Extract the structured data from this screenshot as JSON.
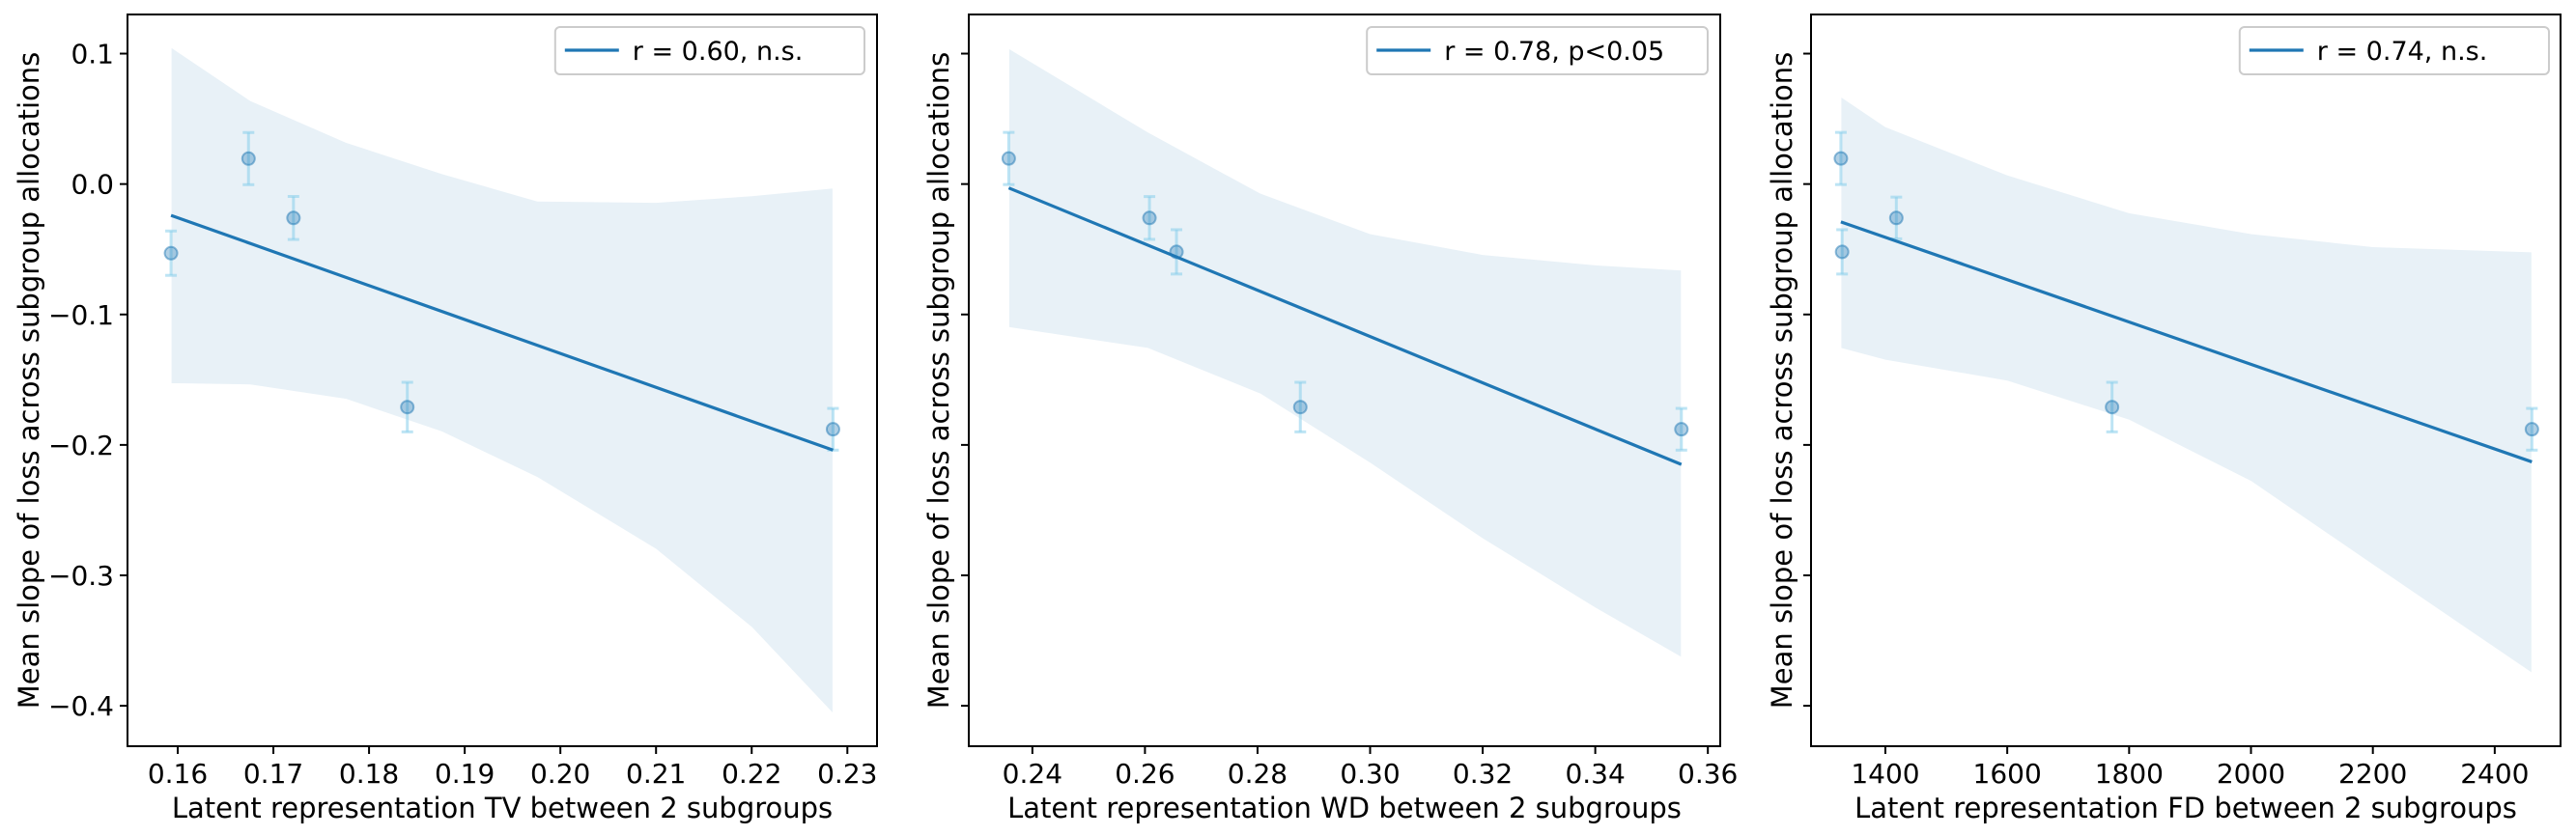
{
  "colors": {
    "fit_line": "#1f77b4",
    "confidence_band": "#1f77b4",
    "marker": "#1f77b4",
    "error_bar": "#87ceeb",
    "axes": "#000000",
    "legend_border": "#cccccc"
  },
  "chart_data": [
    {
      "type": "scatter",
      "xlabel": "Latent representation TV between 2 subgroups",
      "ylabel": "Mean slope of loss across subgroup allocations",
      "xlim": [
        0.15475,
        0.2331
      ],
      "ylim": [
        -0.431,
        0.13
      ],
      "xticks": [
        0.16,
        0.17,
        0.18,
        0.19,
        0.2,
        0.21,
        0.22,
        0.23
      ],
      "xtick_labels": [
        "0.16",
        "0.17",
        "0.18",
        "0.19",
        "0.20",
        "0.21",
        "0.22",
        "0.23"
      ],
      "yticks": [
        0.1,
        0.0,
        -0.1,
        -0.2,
        -0.3,
        -0.4
      ],
      "ytick_labels": [
        "0.1",
        "0.0",
        "−0.1",
        "−0.2",
        "−0.3",
        "−0.4"
      ],
      "show_ytick_labels": true,
      "grid": false,
      "legend": {
        "label": "r = 0.60, n.s.",
        "placement": "top-right"
      },
      "points": [
        {
          "x": 0.1593,
          "y": -0.053,
          "err": 0.017
        },
        {
          "x": 0.1674,
          "y": 0.0195,
          "err": 0.02
        },
        {
          "x": 0.1721,
          "y": -0.026,
          "err": 0.0165
        },
        {
          "x": 0.184,
          "y": -0.171,
          "err": 0.019
        },
        {
          "x": 0.2285,
          "y": -0.188,
          "err": 0.016
        }
      ],
      "fit_line": {
        "x": [
          0.1593,
          0.2285
        ],
        "y": [
          -0.024,
          -0.204
        ]
      },
      "confidence_band": {
        "x": [
          0.1593,
          0.1676,
          0.1776,
          0.1876,
          0.1976,
          0.21,
          0.22,
          0.2285
        ],
        "upper": [
          0.105,
          0.064,
          0.032,
          0.008,
          -0.013,
          -0.014,
          -0.009,
          -0.003
        ],
        "lower": [
          -0.153,
          -0.154,
          -0.165,
          -0.19,
          -0.225,
          -0.28,
          -0.34,
          -0.406
        ]
      }
    },
    {
      "type": "scatter",
      "xlabel": "Latent representation WD between 2 subgroups",
      "ylabel": "Mean slope of loss across subgroup allocations",
      "xlim": [
        0.2287,
        0.3622
      ],
      "ylim": [
        -0.431,
        0.13
      ],
      "xticks": [
        0.24,
        0.26,
        0.28,
        0.3,
        0.32,
        0.34,
        0.36
      ],
      "xtick_labels": [
        "0.24",
        "0.26",
        "0.28",
        "0.30",
        "0.32",
        "0.34",
        "0.36"
      ],
      "yticks": [
        0.1,
        0.0,
        -0.1,
        -0.2,
        -0.3,
        -0.4
      ],
      "show_ytick_labels": false,
      "grid": false,
      "legend": {
        "label": "r = 0.78, p<0.05",
        "placement": "top-right"
      },
      "points": [
        {
          "x": 0.2358,
          "y": 0.0196,
          "err": 0.02
        },
        {
          "x": 0.2608,
          "y": -0.026,
          "err": 0.0164
        },
        {
          "x": 0.2656,
          "y": -0.052,
          "err": 0.017
        },
        {
          "x": 0.2876,
          "y": -0.171,
          "err": 0.019
        },
        {
          "x": 0.3553,
          "y": -0.188,
          "err": 0.016
        }
      ],
      "fit_line": {
        "x": [
          0.2358,
          0.3553
        ],
        "y": [
          -0.003,
          -0.215
        ]
      },
      "confidence_band": {
        "x": [
          0.2358,
          0.2605,
          0.2805,
          0.3,
          0.32,
          0.34,
          0.3553
        ],
        "upper": [
          0.104,
          0.04,
          -0.007,
          -0.038,
          -0.054,
          -0.062,
          -0.066
        ],
        "lower": [
          -0.11,
          -0.126,
          -0.161,
          -0.214,
          -0.272,
          -0.325,
          -0.363
        ]
      }
    },
    {
      "type": "scatter",
      "xlabel": "Latent representation FD between 2 subgroups",
      "ylabel": "Mean slope of loss across subgroup allocations",
      "xlim": [
        1278,
        2508
      ],
      "ylim": [
        -0.431,
        0.13
      ],
      "xticks": [
        1400,
        1600,
        1800,
        2000,
        2200,
        2400
      ],
      "xtick_labels": [
        "1400",
        "1600",
        "1800",
        "2000",
        "2200",
        "2400"
      ],
      "yticks": [
        0.1,
        0.0,
        -0.1,
        -0.2,
        -0.3,
        -0.4
      ],
      "show_ytick_labels": false,
      "grid": false,
      "legend": {
        "label": "r = 0.74, n.s.",
        "placement": "top-right"
      },
      "points": [
        {
          "x": 1327,
          "y": 0.0196,
          "err": 0.02
        },
        {
          "x": 1329,
          "y": -0.052,
          "err": 0.017
        },
        {
          "x": 1418,
          "y": -0.026,
          "err": 0.016
        },
        {
          "x": 1772,
          "y": -0.171,
          "err": 0.019
        },
        {
          "x": 2461,
          "y": -0.188,
          "err": 0.016
        }
      ],
      "fit_line": {
        "x": [
          1327,
          2461
        ],
        "y": [
          -0.029,
          -0.213
        ]
      },
      "confidence_band": {
        "x": [
          1327,
          1400,
          1600,
          1800,
          2000,
          2200,
          2461
        ],
        "upper": [
          0.067,
          0.044,
          0.007,
          -0.022,
          -0.038,
          -0.048,
          -0.052
        ],
        "lower": [
          -0.126,
          -0.135,
          -0.151,
          -0.181,
          -0.228,
          -0.292,
          -0.375
        ]
      }
    }
  ]
}
